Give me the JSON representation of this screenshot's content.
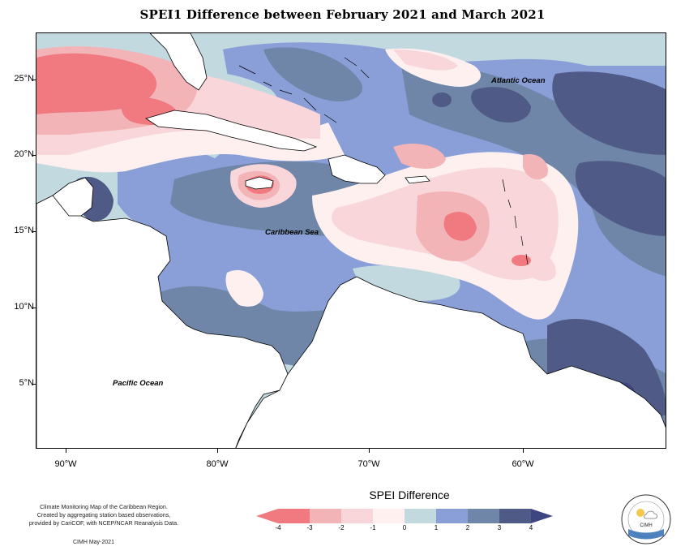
{
  "title": "SPEI1 Difference between February 2021 and March 2021",
  "map": {
    "lat_labels": [
      "25°N",
      "20°N",
      "15°N",
      "10°N",
      "5°N"
    ],
    "lon_labels": [
      "90°W",
      "80°W",
      "70°W",
      "60°W"
    ],
    "ocean_labels": {
      "atlantic": "Atlantic Ocean",
      "caribbean": "Caribbean Sea",
      "pacific": "Pacific Ocean"
    },
    "colors": {
      "d_lt_-3": "#f07a80",
      "d_-3_-2": "#f3b4b8",
      "d_-2_-1": "#f8d6d9",
      "d_-1_0": "#fdf0ef",
      "d_0_1": "#c3d9e0",
      "d_1_2": "#8a9fd8",
      "d_2_3": "#6f86a8",
      "d_gt_3": "#4f5b86"
    }
  },
  "legend": {
    "title": "SPEI Difference",
    "ticks": [
      "-4",
      "-3",
      "-2",
      "-1",
      "0",
      "1",
      "2",
      "3",
      "4"
    ]
  },
  "credit": {
    "line1": "Climate Monitoring Map of the Caribbean Region.",
    "line2": "Created by aggregating station based observations,",
    "line3": "provided by CariCOF, with NCEP/NCAR Reanalysis Data.",
    "date": "CIMH May-2021"
  },
  "logo": {
    "text": "CIMH"
  }
}
